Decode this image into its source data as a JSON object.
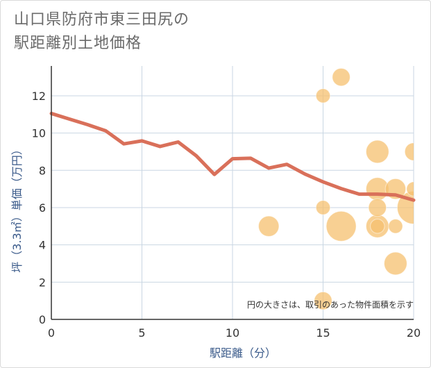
{
  "title": {
    "line1": "山口県防府市東三田尻の",
    "line2": "駅距離別土地価格"
  },
  "chart_data": {
    "type": "line+scatter",
    "xlabel": "駅距離（分）",
    "ylabel": "坪（3.3㎡）単価（万円）",
    "xlim": [
      0,
      20
    ],
    "ylim": [
      0,
      13.6
    ],
    "xticks": [
      0,
      5,
      10,
      15,
      20
    ],
    "yticks": [
      0,
      2,
      4,
      6,
      8,
      10,
      12
    ],
    "grid": true,
    "note": "円の大きさは、取引のあった物件面積を示す",
    "colors": {
      "line": "#d9705a",
      "bubble": "#f5c06f",
      "grid": "#c9d6e3",
      "axis": "#333333"
    },
    "line": {
      "x": [
        0,
        1,
        2,
        3,
        4,
        5,
        6,
        7,
        8,
        9,
        10,
        11,
        12,
        13,
        14,
        15,
        16,
        17,
        18,
        19,
        20
      ],
      "y": [
        11.05,
        10.75,
        10.45,
        10.12,
        9.42,
        9.58,
        9.28,
        9.52,
        8.78,
        7.78,
        8.62,
        8.65,
        8.12,
        8.32,
        7.8,
        7.38,
        7.02,
        6.72,
        6.72,
        6.68,
        6.4
      ]
    },
    "bubbles": [
      {
        "x": 15,
        "y": 12.0,
        "size": 1
      },
      {
        "x": 16,
        "y": 13.0,
        "size": 2
      },
      {
        "x": 18,
        "y": 9.0,
        "size": 4
      },
      {
        "x": 20,
        "y": 9.0,
        "size": 2
      },
      {
        "x": 18,
        "y": 7.0,
        "size": 4
      },
      {
        "x": 19,
        "y": 7.0,
        "size": 3
      },
      {
        "x": 20,
        "y": 7.0,
        "size": 1
      },
      {
        "x": 15,
        "y": 6.0,
        "size": 1
      },
      {
        "x": 18,
        "y": 6.0,
        "size": 2
      },
      {
        "x": 20,
        "y": 6.0,
        "size": 10
      },
      {
        "x": 12,
        "y": 5.0,
        "size": 3
      },
      {
        "x": 16,
        "y": 5.0,
        "size": 8
      },
      {
        "x": 18,
        "y": 5.0,
        "size": 4
      },
      {
        "x": 18,
        "y": 5.0,
        "size": 1
      },
      {
        "x": 19,
        "y": 5.0,
        "size": 1
      },
      {
        "x": 19,
        "y": 3.0,
        "size": 4
      },
      {
        "x": 15,
        "y": 1.0,
        "size": 2
      }
    ]
  }
}
